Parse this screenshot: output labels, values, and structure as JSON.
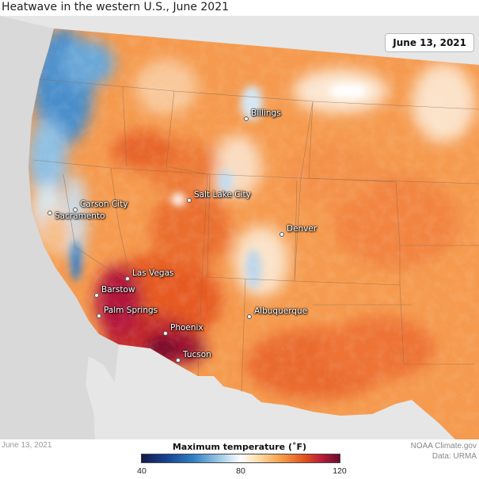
{
  "title": "Heatwave in the western U.S., June 2021",
  "date_box": "June 13, 2021",
  "footer_date": "June 13, 2021",
  "credit": {
    "line1": "NOAA Climate.gov",
    "line2": "Data: URMA"
  },
  "legend": {
    "title": "Maximum temperature (˚F)",
    "ticks": [
      "40",
      "80",
      "120"
    ],
    "range": [
      40,
      120
    ],
    "colors": [
      "#141a4a",
      "#16418f",
      "#2f7fc4",
      "#a4cde6",
      "#ffffff",
      "#fbe1b2",
      "#f6a04a",
      "#e3541e",
      "#b1183a",
      "#6b0d2c"
    ]
  },
  "cities": [
    {
      "name": "Billings"
    },
    {
      "name": "Salt Lake City"
    },
    {
      "name": "Carson City"
    },
    {
      "name": "Sacramento"
    },
    {
      "name": "Denver"
    },
    {
      "name": "Las Vegas"
    },
    {
      "name": "Barstow"
    },
    {
      "name": "Palm Springs"
    },
    {
      "name": "Phoenix"
    },
    {
      "name": "Albuquerque"
    },
    {
      "name": "Tucson"
    }
  ]
}
